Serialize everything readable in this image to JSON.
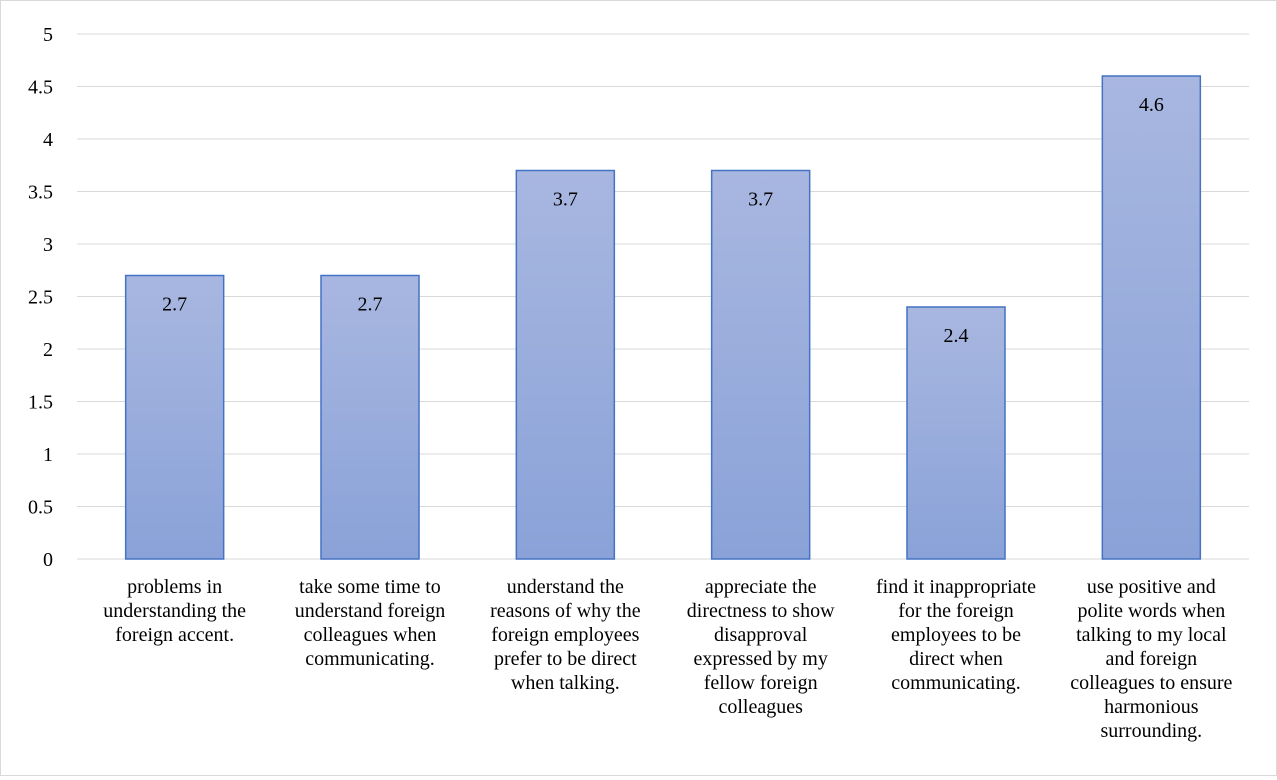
{
  "chart_data": {
    "type": "bar",
    "title": "",
    "xlabel": "",
    "ylabel": "",
    "ylim": [
      0,
      5
    ],
    "ytick_step": 0.5,
    "ytick_labels": [
      "0",
      "0.5",
      "1",
      "1.5",
      "2",
      "2.5",
      "3",
      "3.5",
      "4",
      "4.5",
      "5"
    ],
    "grid": true,
    "legend": "none",
    "categories": [
      [
        "problems in",
        "understanding the",
        "foreign accent."
      ],
      [
        "take some time to",
        "understand foreign",
        "colleagues when",
        "communicating."
      ],
      [
        "understand the",
        "reasons of why the",
        "foreign employees",
        "prefer to be direct",
        "when talking."
      ],
      [
        "appreciate the",
        "directness to show",
        "disapproval",
        "expressed by my",
        "fellow foreign",
        "colleagues"
      ],
      [
        "find it inappropriate",
        "for the foreign",
        "employees to be",
        "direct when",
        "communicating."
      ],
      [
        "use positive and",
        "polite words when",
        "talking to my local",
        "and foreign",
        "colleagues to ensure",
        "harmonious",
        "surrounding."
      ]
    ],
    "values": [
      2.7,
      2.7,
      3.7,
      3.7,
      2.4,
      4.6
    ],
    "data_labels": [
      "2.7",
      "2.7",
      "3.7",
      "3.7",
      "2.4",
      "4.6"
    ],
    "colors": {
      "bar_top": "#a8b7e0",
      "bar_bottom": "#8aa2d8",
      "bar_border": "#4472c4",
      "grid": "#d9d9d9",
      "text": "#000000"
    }
  }
}
